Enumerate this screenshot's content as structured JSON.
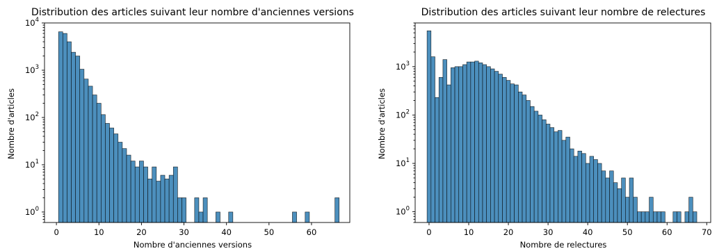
{
  "figure": {
    "bar_color": "#4c8fbd",
    "edge_color": "#000000"
  },
  "chart_data": [
    {
      "type": "bar",
      "title": "Distribution des articles suivant leur nombre d'anciennes versions",
      "xlabel": "Nombre d'anciennes versions",
      "ylabel": "Nombre d'articles",
      "yscale": "log",
      "xlim": [
        -2.8,
        69
      ],
      "ylim": [
        0.6,
        10000
      ],
      "grid": false,
      "bin_width": 1,
      "x_ticks": [
        0,
        10,
        20,
        30,
        40,
        50,
        60
      ],
      "x_tick_labels": [
        "0",
        "10",
        "20",
        "30",
        "40",
        "50",
        "60"
      ],
      "y_ticks": [
        {
          "value": 1,
          "base": "10",
          "exp": "0"
        },
        {
          "value": 10,
          "base": "10",
          "exp": "1"
        },
        {
          "value": 100,
          "base": "10",
          "exp": "2"
        },
        {
          "value": 1000,
          "base": "10",
          "exp": "3"
        },
        {
          "value": 10000,
          "base": "10",
          "exp": "4"
        }
      ],
      "bins": [
        {
          "x": 1,
          "count": 6500
        },
        {
          "x": 2,
          "count": 6000
        },
        {
          "x": 3,
          "count": 4000
        },
        {
          "x": 4,
          "count": 2400
        },
        {
          "x": 5,
          "count": 2000
        },
        {
          "x": 6,
          "count": 1050
        },
        {
          "x": 7,
          "count": 650
        },
        {
          "x": 8,
          "count": 460
        },
        {
          "x": 9,
          "count": 300
        },
        {
          "x": 10,
          "count": 200
        },
        {
          "x": 11,
          "count": 115
        },
        {
          "x": 12,
          "count": 75
        },
        {
          "x": 13,
          "count": 60
        },
        {
          "x": 14,
          "count": 45
        },
        {
          "x": 15,
          "count": 30
        },
        {
          "x": 16,
          "count": 22
        },
        {
          "x": 17,
          "count": 16
        },
        {
          "x": 18,
          "count": 12
        },
        {
          "x": 19,
          "count": 9
        },
        {
          "x": 20,
          "count": 12
        },
        {
          "x": 21,
          "count": 9
        },
        {
          "x": 22,
          "count": 5
        },
        {
          "x": 23,
          "count": 9
        },
        {
          "x": 24,
          "count": 4.5
        },
        {
          "x": 25,
          "count": 6
        },
        {
          "x": 26,
          "count": 5
        },
        {
          "x": 27,
          "count": 6
        },
        {
          "x": 28,
          "count": 9
        },
        {
          "x": 29,
          "count": 2
        },
        {
          "x": 30,
          "count": 2
        },
        {
          "x": 33,
          "count": 2
        },
        {
          "x": 34,
          "count": 1
        },
        {
          "x": 35,
          "count": 2
        },
        {
          "x": 38,
          "count": 1
        },
        {
          "x": 41,
          "count": 1
        },
        {
          "x": 56,
          "count": 1
        },
        {
          "x": 59,
          "count": 1
        },
        {
          "x": 66,
          "count": 2
        }
      ]
    },
    {
      "type": "bar",
      "title": "Distribution des articles suivant leur nombre de relectures",
      "xlabel": "Nombre de relectures",
      "ylabel": "Nombre d'articles",
      "yscale": "log",
      "xlim": [
        -3.5,
        71
      ],
      "ylim": [
        0.6,
        8000
      ],
      "grid": false,
      "bin_width": 1,
      "x_ticks": [
        0,
        10,
        20,
        30,
        40,
        50,
        60,
        70
      ],
      "x_tick_labels": [
        "0",
        "10",
        "20",
        "30",
        "40",
        "50",
        "60",
        "70"
      ],
      "y_ticks": [
        {
          "value": 1,
          "base": "10",
          "exp": "0"
        },
        {
          "value": 10,
          "base": "10",
          "exp": "1"
        },
        {
          "value": 100,
          "base": "10",
          "exp": "2"
        },
        {
          "value": 1000,
          "base": "10",
          "exp": "3"
        }
      ],
      "bins": [
        {
          "x": 0,
          "count": 5500
        },
        {
          "x": 1,
          "count": 1600
        },
        {
          "x": 2,
          "count": 230
        },
        {
          "x": 3,
          "count": 600
        },
        {
          "x": 4,
          "count": 1400
        },
        {
          "x": 5,
          "count": 420
        },
        {
          "x": 6,
          "count": 950
        },
        {
          "x": 7,
          "count": 1000
        },
        {
          "x": 8,
          "count": 1000
        },
        {
          "x": 9,
          "count": 1100
        },
        {
          "x": 10,
          "count": 1250
        },
        {
          "x": 11,
          "count": 1250
        },
        {
          "x": 12,
          "count": 1300
        },
        {
          "x": 13,
          "count": 1200
        },
        {
          "x": 14,
          "count": 1100
        },
        {
          "x": 15,
          "count": 1000
        },
        {
          "x": 16,
          "count": 900
        },
        {
          "x": 17,
          "count": 800
        },
        {
          "x": 18,
          "count": 700
        },
        {
          "x": 19,
          "count": 600
        },
        {
          "x": 20,
          "count": 520
        },
        {
          "x": 21,
          "count": 440
        },
        {
          "x": 22,
          "count": 420
        },
        {
          "x": 23,
          "count": 300
        },
        {
          "x": 24,
          "count": 260
        },
        {
          "x": 25,
          "count": 200
        },
        {
          "x": 26,
          "count": 150
        },
        {
          "x": 27,
          "count": 120
        },
        {
          "x": 28,
          "count": 100
        },
        {
          "x": 29,
          "count": 80
        },
        {
          "x": 30,
          "count": 65
        },
        {
          "x": 31,
          "count": 55
        },
        {
          "x": 32,
          "count": 45
        },
        {
          "x": 33,
          "count": 48
        },
        {
          "x": 34,
          "count": 30
        },
        {
          "x": 35,
          "count": 35
        },
        {
          "x": 36,
          "count": 20
        },
        {
          "x": 37,
          "count": 14
        },
        {
          "x": 38,
          "count": 18
        },
        {
          "x": 39,
          "count": 16
        },
        {
          "x": 40,
          "count": 10
        },
        {
          "x": 41,
          "count": 14
        },
        {
          "x": 42,
          "count": 12
        },
        {
          "x": 43,
          "count": 10
        },
        {
          "x": 44,
          "count": 7
        },
        {
          "x": 45,
          "count": 5
        },
        {
          "x": 46,
          "count": 7
        },
        {
          "x": 47,
          "count": 4
        },
        {
          "x": 48,
          "count": 3
        },
        {
          "x": 49,
          "count": 5
        },
        {
          "x": 50,
          "count": 2
        },
        {
          "x": 51,
          "count": 5
        },
        {
          "x": 52,
          "count": 2
        },
        {
          "x": 53,
          "count": 1
        },
        {
          "x": 54,
          "count": 1
        },
        {
          "x": 55,
          "count": 1
        },
        {
          "x": 56,
          "count": 2
        },
        {
          "x": 57,
          "count": 1
        },
        {
          "x": 58,
          "count": 1
        },
        {
          "x": 59,
          "count": 1
        },
        {
          "x": 62,
          "count": 1
        },
        {
          "x": 63,
          "count": 1
        },
        {
          "x": 65,
          "count": 1
        },
        {
          "x": 66,
          "count": 2
        },
        {
          "x": 67,
          "count": 1
        }
      ]
    }
  ]
}
